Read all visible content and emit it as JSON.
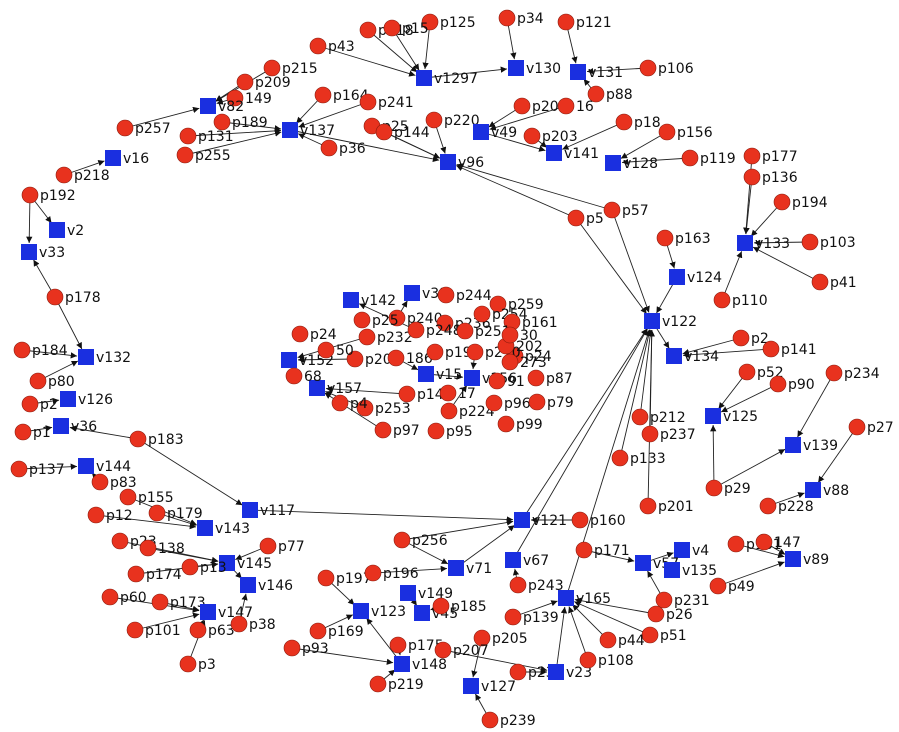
{
  "colors": {
    "p_node": "#e8321e",
    "v_node": "#1a2fe0",
    "edge": "#222222",
    "background": "#ffffff"
  },
  "nodes": [
    {
      "id": "p34",
      "label": "p34",
      "kind": "p"
    },
    {
      "id": "p121",
      "label": "p121",
      "kind": "p"
    },
    {
      "id": "p125",
      "label": "p125",
      "kind": "p"
    },
    {
      "id": "p118",
      "label": "p118",
      "kind": "p"
    },
    {
      "id": "p15x",
      "label": "p15",
      "kind": "p"
    },
    {
      "id": "p43",
      "label": "p43",
      "kind": "p"
    },
    {
      "id": "v1297",
      "label": "v1297",
      "kind": "v"
    },
    {
      "id": "v130",
      "label": "v130",
      "kind": "v"
    },
    {
      "id": "v131",
      "label": "v131",
      "kind": "v"
    },
    {
      "id": "p106",
      "label": "p106",
      "kind": "p"
    },
    {
      "id": "p88",
      "label": "p88",
      "kind": "p"
    },
    {
      "id": "p215",
      "label": "p215",
      "kind": "p"
    },
    {
      "id": "p209",
      "label": "p209",
      "kind": "p"
    },
    {
      "id": "p149",
      "label": "149",
      "kind": "p"
    },
    {
      "id": "v82",
      "label": "v82",
      "kind": "v"
    },
    {
      "id": "p164",
      "label": "p164",
      "kind": "p"
    },
    {
      "id": "p241",
      "label": "p241",
      "kind": "p"
    },
    {
      "id": "p208",
      "label": "p208",
      "kind": "p"
    },
    {
      "id": "p16",
      "label": "16",
      "kind": "p"
    },
    {
      "id": "p257",
      "label": "p257",
      "kind": "p"
    },
    {
      "id": "p189",
      "label": "p189",
      "kind": "p"
    },
    {
      "id": "p131",
      "label": "p131",
      "kind": "p"
    },
    {
      "id": "v137",
      "label": "v137",
      "kind": "v"
    },
    {
      "id": "p25x",
      "label": "p25",
      "kind": "p"
    },
    {
      "id": "p220",
      "label": "p220",
      "kind": "p"
    },
    {
      "id": "p144",
      "label": "p144",
      "kind": "p"
    },
    {
      "id": "v49",
      "label": "v49",
      "kind": "v"
    },
    {
      "id": "p203",
      "label": "p203",
      "kind": "p"
    },
    {
      "id": "p18",
      "label": "p18",
      "kind": "p"
    },
    {
      "id": "p156",
      "label": "p156",
      "kind": "p"
    },
    {
      "id": "p255",
      "label": "p255",
      "kind": "p"
    },
    {
      "id": "p36",
      "label": "p36",
      "kind": "p"
    },
    {
      "id": "v96",
      "label": "v96",
      "kind": "v"
    },
    {
      "id": "v141",
      "label": "v141",
      "kind": "v"
    },
    {
      "id": "v128",
      "label": "v128",
      "kind": "v"
    },
    {
      "id": "p119",
      "label": "p119",
      "kind": "p"
    },
    {
      "id": "p177",
      "label": "p177",
      "kind": "p"
    },
    {
      "id": "v16",
      "label": "v16",
      "kind": "v"
    },
    {
      "id": "p218",
      "label": "p218",
      "kind": "p"
    },
    {
      "id": "p136",
      "label": "p136",
      "kind": "p"
    },
    {
      "id": "p192",
      "label": "p192",
      "kind": "p"
    },
    {
      "id": "p194",
      "label": "p194",
      "kind": "p"
    },
    {
      "id": "v2",
      "label": "v2",
      "kind": "v"
    },
    {
      "id": "p5x",
      "label": "p5",
      "kind": "p"
    },
    {
      "id": "p57",
      "label": "p57",
      "kind": "p"
    },
    {
      "id": "v33",
      "label": "v33",
      "kind": "v"
    },
    {
      "id": "p163",
      "label": "p163",
      "kind": "p"
    },
    {
      "id": "v133",
      "label": "v133",
      "kind": "v"
    },
    {
      "id": "p103",
      "label": "p103",
      "kind": "p"
    },
    {
      "id": "v124",
      "label": "v124",
      "kind": "v"
    },
    {
      "id": "p41",
      "label": "p41",
      "kind": "p"
    },
    {
      "id": "p178",
      "label": "p178",
      "kind": "p"
    },
    {
      "id": "p110",
      "label": "p110",
      "kind": "p"
    },
    {
      "id": "v122",
      "label": "v122",
      "kind": "v"
    },
    {
      "id": "v142",
      "label": "v142",
      "kind": "v"
    },
    {
      "id": "v31",
      "label": "v31",
      "kind": "v"
    },
    {
      "id": "p244",
      "label": "p244",
      "kind": "p"
    },
    {
      "id": "p259",
      "label": "p259",
      "kind": "p"
    },
    {
      "id": "p184",
      "label": "p184",
      "kind": "p"
    },
    {
      "id": "v132",
      "label": "v132",
      "kind": "v"
    },
    {
      "id": "p2",
      "label": "p2",
      "kind": "p"
    },
    {
      "id": "p141",
      "label": "p141",
      "kind": "p"
    },
    {
      "id": "v134",
      "label": "v134",
      "kind": "v"
    },
    {
      "id": "p80",
      "label": "p80",
      "kind": "p"
    },
    {
      "id": "p52",
      "label": "p52",
      "kind": "p"
    },
    {
      "id": "p90",
      "label": "p90",
      "kind": "p"
    },
    {
      "id": "p234",
      "label": "p234",
      "kind": "p"
    },
    {
      "id": "p2b",
      "label": "p2",
      "kind": "p"
    },
    {
      "id": "v126",
      "label": "v126",
      "kind": "v"
    },
    {
      "id": "p1x",
      "label": "p1",
      "kind": "p"
    },
    {
      "id": "v36",
      "label": "v36",
      "kind": "v"
    },
    {
      "id": "v125",
      "label": "v125",
      "kind": "v"
    },
    {
      "id": "p212",
      "label": "p212",
      "kind": "p"
    },
    {
      "id": "p237",
      "label": "p237",
      "kind": "p"
    },
    {
      "id": "p27",
      "label": "p27",
      "kind": "p"
    },
    {
      "id": "p183",
      "label": "p183",
      "kind": "p"
    },
    {
      "id": "v139",
      "label": "v139",
      "kind": "v"
    },
    {
      "id": "p137",
      "label": "p137",
      "kind": "p"
    },
    {
      "id": "v144",
      "label": "v144",
      "kind": "v"
    },
    {
      "id": "p133",
      "label": "p133",
      "kind": "p"
    },
    {
      "id": "p83",
      "label": "p83",
      "kind": "p"
    },
    {
      "id": "v88",
      "label": "v88",
      "kind": "v"
    },
    {
      "id": "p29",
      "label": "p29",
      "kind": "p"
    },
    {
      "id": "p201",
      "label": "p201",
      "kind": "p"
    },
    {
      "id": "p228",
      "label": "p228",
      "kind": "p"
    },
    {
      "id": "p155",
      "label": "p155",
      "kind": "p"
    },
    {
      "id": "p12",
      "label": "p12",
      "kind": "p"
    },
    {
      "id": "p179",
      "label": "p179",
      "kind": "p"
    },
    {
      "id": "v117",
      "label": "v117",
      "kind": "v"
    },
    {
      "id": "v143",
      "label": "v143",
      "kind": "v"
    },
    {
      "id": "p256",
      "label": "p256",
      "kind": "p"
    },
    {
      "id": "v121",
      "label": "v121",
      "kind": "v"
    },
    {
      "id": "p160",
      "label": "p160",
      "kind": "p"
    },
    {
      "id": "p23",
      "label": "p23",
      "kind": "p"
    },
    {
      "id": "p138",
      "label": "138",
      "kind": "p"
    },
    {
      "id": "p77",
      "label": "p77",
      "kind": "p"
    },
    {
      "id": "p181",
      "label": "p181",
      "kind": "p"
    },
    {
      "id": "p147",
      "label": "147",
      "kind": "p"
    },
    {
      "id": "v4",
      "label": "v4",
      "kind": "v"
    },
    {
      "id": "v89",
      "label": "v89",
      "kind": "v"
    },
    {
      "id": "v145",
      "label": "v145",
      "kind": "v"
    },
    {
      "id": "p174",
      "label": "p174",
      "kind": "p"
    },
    {
      "id": "p13x",
      "label": "p13",
      "kind": "p"
    },
    {
      "id": "v67",
      "label": "v67",
      "kind": "v"
    },
    {
      "id": "p171",
      "label": "p171",
      "kind": "p"
    },
    {
      "id": "v57",
      "label": "v57",
      "kind": "v"
    },
    {
      "id": "v135",
      "label": "v135",
      "kind": "v"
    },
    {
      "id": "p197",
      "label": "p197",
      "kind": "p"
    },
    {
      "id": "p196",
      "label": "p196",
      "kind": "p"
    },
    {
      "id": "v71",
      "label": "v71",
      "kind": "v"
    },
    {
      "id": "p49",
      "label": "p49",
      "kind": "p"
    },
    {
      "id": "v146",
      "label": "v146",
      "kind": "v"
    },
    {
      "id": "p243",
      "label": "p243",
      "kind": "p"
    },
    {
      "id": "p60",
      "label": "p60",
      "kind": "p"
    },
    {
      "id": "p173",
      "label": "p173",
      "kind": "p"
    },
    {
      "id": "v149",
      "label": "v149",
      "kind": "v"
    },
    {
      "id": "v165",
      "label": "v165",
      "kind": "v"
    },
    {
      "id": "p231",
      "label": "p231",
      "kind": "p"
    },
    {
      "id": "p26",
      "label": "p26",
      "kind": "p"
    },
    {
      "id": "v147",
      "label": "v147",
      "kind": "v"
    },
    {
      "id": "v123",
      "label": "v123",
      "kind": "v"
    },
    {
      "id": "v45",
      "label": "v45",
      "kind": "v"
    },
    {
      "id": "p185",
      "label": "p185",
      "kind": "p"
    },
    {
      "id": "p101",
      "label": "p101",
      "kind": "p"
    },
    {
      "id": "p63",
      "label": "p63",
      "kind": "p"
    },
    {
      "id": "p38",
      "label": "p38",
      "kind": "p"
    },
    {
      "id": "p169",
      "label": "p169",
      "kind": "p"
    },
    {
      "id": "p139",
      "label": "p139",
      "kind": "p"
    },
    {
      "id": "p51",
      "label": "p51",
      "kind": "p"
    },
    {
      "id": "p93",
      "label": "p93",
      "kind": "p"
    },
    {
      "id": "p175",
      "label": "p175",
      "kind": "p"
    },
    {
      "id": "p205",
      "label": "p205",
      "kind": "p"
    },
    {
      "id": "p207",
      "label": "p207",
      "kind": "p"
    },
    {
      "id": "p44",
      "label": "p44",
      "kind": "p"
    },
    {
      "id": "p3",
      "label": "p3",
      "kind": "p"
    },
    {
      "id": "v148",
      "label": "v148",
      "kind": "v"
    },
    {
      "id": "p23b",
      "label": "p23",
      "kind": "p"
    },
    {
      "id": "v23",
      "label": "v23",
      "kind": "v"
    },
    {
      "id": "p108",
      "label": "p108",
      "kind": "p"
    },
    {
      "id": "p219",
      "label": "p219",
      "kind": "p"
    },
    {
      "id": "v127",
      "label": "v127",
      "kind": "v"
    },
    {
      "id": "p239",
      "label": "p239",
      "kind": "p"
    },
    {
      "id": "p240",
      "label": "p240",
      "kind": "p"
    },
    {
      "id": "p236",
      "label": "p236",
      "kind": "p"
    },
    {
      "id": "p254",
      "label": "p254",
      "kind": "p"
    },
    {
      "id": "p161",
      "label": "p161",
      "kind": "p"
    },
    {
      "id": "p232",
      "label": "p232",
      "kind": "p"
    },
    {
      "id": "p248",
      "label": "p248",
      "kind": "p"
    },
    {
      "id": "p251",
      "label": "p251",
      "kind": "p"
    },
    {
      "id": "p24",
      "label": "p24",
      "kind": "p"
    },
    {
      "id": "v152",
      "label": "v152",
      "kind": "v"
    },
    {
      "id": "p204",
      "label": "p204",
      "kind": "p"
    },
    {
      "id": "p186",
      "label": "186",
      "kind": "p"
    },
    {
      "id": "p19x",
      "label": "p19",
      "kind": "p"
    },
    {
      "id": "p210",
      "label": "p210",
      "kind": "p"
    },
    {
      "id": "p273",
      "label": "273",
      "kind": "p"
    },
    {
      "id": "v157",
      "label": "v157",
      "kind": "v"
    },
    {
      "id": "v15x",
      "label": "v15",
      "kind": "v"
    },
    {
      "id": "v156",
      "label": "v156",
      "kind": "v"
    },
    {
      "id": "p87",
      "label": "p87",
      "kind": "p"
    },
    {
      "id": "p140",
      "label": "p140",
      "kind": "p"
    },
    {
      "id": "p91",
      "label": "91",
      "kind": "p"
    },
    {
      "id": "p253",
      "label": "p253",
      "kind": "p"
    },
    {
      "id": "p224",
      "label": "p224",
      "kind": "p"
    },
    {
      "id": "p96",
      "label": "p96",
      "kind": "p"
    },
    {
      "id": "p79",
      "label": "p79",
      "kind": "p"
    },
    {
      "id": "p97",
      "label": "p97",
      "kind": "p"
    },
    {
      "id": "p95",
      "label": "p95",
      "kind": "p"
    },
    {
      "id": "p99",
      "label": "p99",
      "kind": "p"
    },
    {
      "id": "p4x",
      "label": "p4",
      "kind": "p"
    },
    {
      "id": "p202",
      "label": "202",
      "kind": "p"
    },
    {
      "id": "p50",
      "label": "50",
      "kind": "p"
    },
    {
      "id": "p17",
      "label": "17",
      "kind": "p"
    },
    {
      "id": "p68",
      "label": "68",
      "kind": "p"
    },
    {
      "id": "p30",
      "label": "30",
      "kind": "p"
    },
    {
      "id": "p24b",
      "label": "p24",
      "kind": "p"
    },
    {
      "id": "p25c",
      "label": "p25",
      "kind": "p"
    }
  ],
  "edges": [
    [
      "p125",
      "v1297"
    ],
    [
      "p118",
      "v1297"
    ],
    [
      "p15x",
      "v1297"
    ],
    [
      "p43",
      "v1297"
    ],
    [
      "p34",
      "v130"
    ],
    [
      "p121",
      "v131"
    ],
    [
      "p106",
      "v131"
    ],
    [
      "p88",
      "v131"
    ],
    [
      "v1297",
      "v130"
    ],
    [
      "p215",
      "v82"
    ],
    [
      "p209",
      "v82"
    ],
    [
      "p149",
      "v82"
    ],
    [
      "p257",
      "v82"
    ],
    [
      "p164",
      "v137"
    ],
    [
      "p241",
      "v137"
    ],
    [
      "p189",
      "v137"
    ],
    [
      "p131",
      "v137"
    ],
    [
      "p255",
      "v137"
    ],
    [
      "p36",
      "v137"
    ],
    [
      "p144",
      "v96"
    ],
    [
      "p220",
      "v96"
    ],
    [
      "v137",
      "v96"
    ],
    [
      "p25x",
      "v96"
    ],
    [
      "p208",
      "v49"
    ],
    [
      "p16",
      "v49"
    ],
    [
      "p203",
      "v141"
    ],
    [
      "v49",
      "v141"
    ],
    [
      "p18",
      "v141"
    ],
    [
      "p156",
      "v128"
    ],
    [
      "p119",
      "v128"
    ],
    [
      "p177",
      "v133"
    ],
    [
      "p136",
      "v133"
    ],
    [
      "p194",
      "v133"
    ],
    [
      "p103",
      "v133"
    ],
    [
      "p41",
      "v133"
    ],
    [
      "p110",
      "v133"
    ],
    [
      "p218",
      "v16"
    ],
    [
      "p192",
      "v2"
    ],
    [
      "p192",
      "v33"
    ],
    [
      "p178",
      "v33"
    ],
    [
      "p5x",
      "v96"
    ],
    [
      "p57",
      "v96"
    ],
    [
      "p5x",
      "v122"
    ],
    [
      "p57",
      "v122"
    ],
    [
      "p163",
      "v124"
    ],
    [
      "v124",
      "v122"
    ],
    [
      "p178",
      "v132"
    ],
    [
      "p184",
      "v132"
    ],
    [
      "p80",
      "v132"
    ],
    [
      "p2b",
      "v126"
    ],
    [
      "p1x",
      "v36"
    ],
    [
      "p183",
      "v36"
    ],
    [
      "p183",
      "v117"
    ],
    [
      "p137",
      "v144"
    ],
    [
      "p83",
      "v144"
    ],
    [
      "p2",
      "v134"
    ],
    [
      "p141",
      "v134"
    ],
    [
      "v122",
      "v134"
    ],
    [
      "p52",
      "v125"
    ],
    [
      "p90",
      "v125"
    ],
    [
      "p29",
      "v125"
    ],
    [
      "p234",
      "v139"
    ],
    [
      "p27",
      "v88"
    ],
    [
      "p228",
      "v88"
    ],
    [
      "p29",
      "v139"
    ],
    [
      "p212",
      "v122"
    ],
    [
      "p237",
      "v122"
    ],
    [
      "p133",
      "v122"
    ],
    [
      "p201",
      "v122"
    ],
    [
      "v121",
      "v122"
    ],
    [
      "p256",
      "v121"
    ],
    [
      "v117",
      "v121"
    ],
    [
      "p160",
      "v121"
    ],
    [
      "p155",
      "v143"
    ],
    [
      "p12",
      "v143"
    ],
    [
      "p179",
      "v143"
    ],
    [
      "p23",
      "v145"
    ],
    [
      "p138",
      "v145"
    ],
    [
      "p174",
      "v145"
    ],
    [
      "p13x",
      "v145"
    ],
    [
      "p77",
      "v145"
    ],
    [
      "v145",
      "v146"
    ],
    [
      "p173",
      "v147"
    ],
    [
      "p60",
      "v147"
    ],
    [
      "p101",
      "v147"
    ],
    [
      "p63",
      "v147"
    ],
    [
      "p38",
      "v146"
    ],
    [
      "p197",
      "v123"
    ],
    [
      "p196",
      "v71"
    ],
    [
      "p256",
      "v71"
    ],
    [
      "v71",
      "v121"
    ],
    [
      "p243",
      "v67"
    ],
    [
      "v67",
      "v122"
    ],
    [
      "p171",
      "v57"
    ],
    [
      "v57",
      "v4"
    ],
    [
      "p181",
      "v89"
    ],
    [
      "p147",
      "v89"
    ],
    [
      "p49",
      "v89"
    ],
    [
      "p231",
      "v57"
    ],
    [
      "p26",
      "v165"
    ],
    [
      "p51",
      "v165"
    ],
    [
      "p44",
      "v165"
    ],
    [
      "p108",
      "v165"
    ],
    [
      "p139",
      "v165"
    ],
    [
      "p185",
      "v45"
    ],
    [
      "v149",
      "v45"
    ],
    [
      "p169",
      "v123"
    ],
    [
      "p93",
      "v148"
    ],
    [
      "p175",
      "v148"
    ],
    [
      "p205",
      "v127"
    ],
    [
      "p207",
      "v23"
    ],
    [
      "p23b",
      "v23"
    ],
    [
      "p219",
      "v148"
    ],
    [
      "p239",
      "v127"
    ],
    [
      "v165",
      "v122"
    ],
    [
      "v23",
      "v165"
    ],
    [
      "p3",
      "v147"
    ],
    [
      "v148",
      "v123"
    ],
    [
      "p240",
      "v31"
    ],
    [
      "p232",
      "v152"
    ],
    [
      "p204",
      "v152"
    ],
    [
      "p186",
      "v15x"
    ],
    [
      "p140",
      "v157"
    ],
    [
      "p210",
      "v156"
    ],
    [
      "p224",
      "v156"
    ],
    [
      "p253",
      "v157"
    ],
    [
      "p97",
      "v157"
    ],
    [
      "v15x",
      "v156"
    ],
    [
      "p248",
      "v142"
    ]
  ]
}
